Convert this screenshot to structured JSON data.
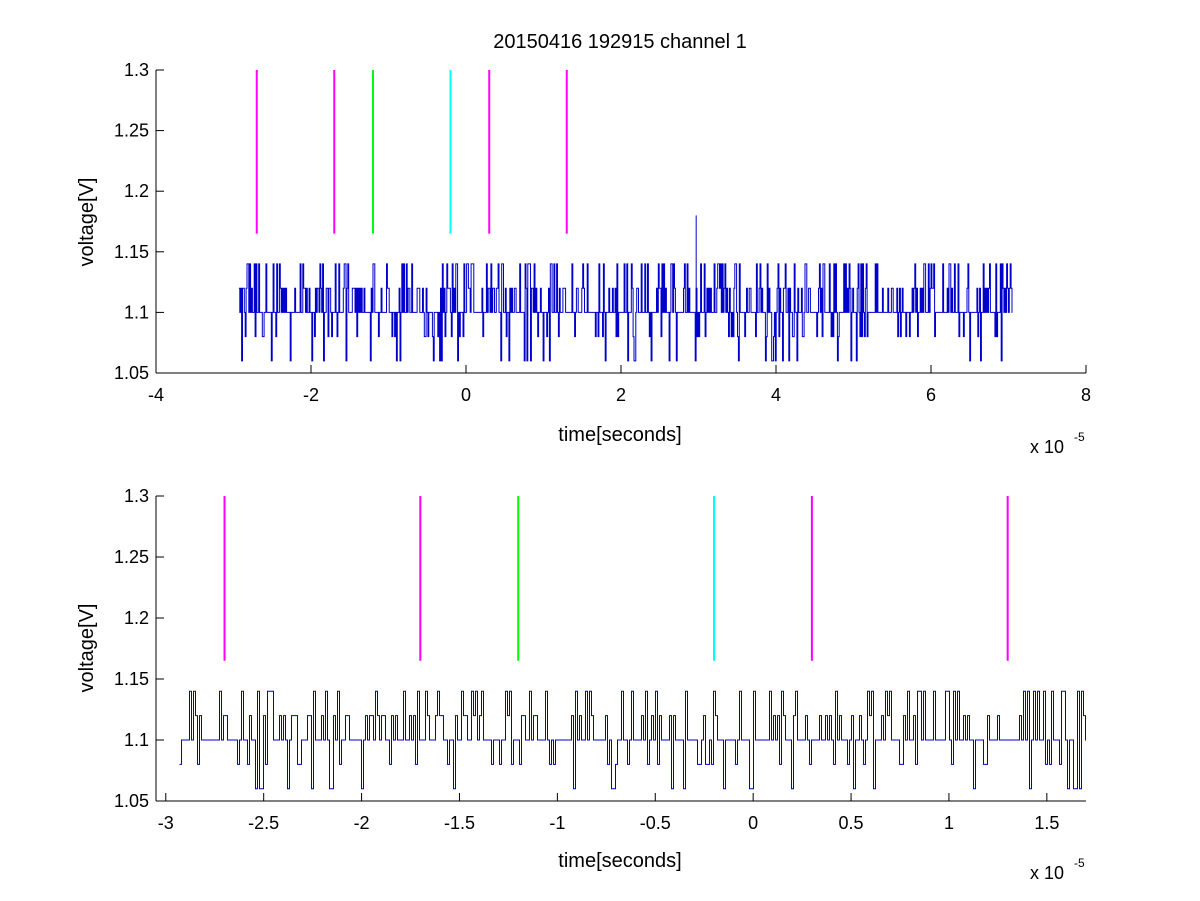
{
  "chart_data": [
    {
      "type": "line",
      "title": "20150416 192915 channel 1",
      "xlabel": "time[seconds]",
      "ylabel": "voltage[V]",
      "x_multiplier_base": "x 10",
      "x_multiplier_exp": "-5",
      "x_scale": 1e-05,
      "xlim": [
        -4,
        8
      ],
      "ylim": [
        1.05,
        1.3
      ],
      "xticks": [
        -4,
        -2,
        0,
        2,
        4,
        6,
        8
      ],
      "xtick_labels": [
        "-4",
        "-2",
        "0",
        "2",
        "4",
        "6",
        "8"
      ],
      "yticks": [
        1.05,
        1.1,
        1.15,
        1.2,
        1.25,
        1.3
      ],
      "ytick_labels": [
        "1.05",
        "1.1",
        "1.15",
        "1.2",
        "1.25",
        "1.3"
      ],
      "grid": false,
      "series": [
        {
          "color": "#0000cc",
          "style": "noisy-step",
          "x_range": [
            -2.93,
            7.05
          ],
          "baseline": 1.1,
          "levels": [
            1.06,
            1.08,
            1.1,
            1.12,
            1.14
          ],
          "spike": {
            "x": 2.97,
            "y": 1.18
          }
        }
      ],
      "markers": [
        {
          "x": -2.7,
          "y_range": [
            1.165,
            1.3
          ],
          "color": "#ff00ff"
        },
        {
          "x": -1.7,
          "y_range": [
            1.165,
            1.3
          ],
          "color": "#ff00ff"
        },
        {
          "x": -1.2,
          "y_range": [
            1.165,
            1.3
          ],
          "color": "#00ff00"
        },
        {
          "x": -0.2,
          "y_range": [
            1.165,
            1.3
          ],
          "color": "#00ffff"
        },
        {
          "x": 0.3,
          "y_range": [
            1.165,
            1.3
          ],
          "color": "#ff00ff"
        },
        {
          "x": 1.3,
          "y_range": [
            1.165,
            1.3
          ],
          "color": "#ff00ff"
        }
      ]
    },
    {
      "type": "line",
      "title": "",
      "xlabel": "time[seconds]",
      "ylabel": "voltage[V]",
      "x_multiplier_base": "x 10",
      "x_multiplier_exp": "-5",
      "x_scale": 1e-05,
      "xlim": [
        -3.05,
        1.7
      ],
      "ylim": [
        1.05,
        1.3
      ],
      "xticks": [
        -3,
        -2.5,
        -2,
        -1.5,
        -1,
        -0.5,
        0,
        0.5,
        1,
        1.5
      ],
      "xtick_labels": [
        "-3",
        "-2.5",
        "-2",
        "-1.5",
        "-1",
        "-0.5",
        "0",
        "0.5",
        "1",
        "1.5"
      ],
      "yticks": [
        1.05,
        1.1,
        1.15,
        1.2,
        1.25,
        1.3
      ],
      "ytick_labels": [
        "1.05",
        "1.1",
        "1.15",
        "1.2",
        "1.25",
        "1.3"
      ],
      "grid": false,
      "series": [
        {
          "color": "#0000cc",
          "style": "noisy-step",
          "x_range": [
            -2.93,
            1.7
          ],
          "baseline": 1.1,
          "levels": [
            1.06,
            1.08,
            1.1,
            1.12,
            1.14
          ]
        }
      ],
      "markers": [
        {
          "x": -2.7,
          "y_range": [
            1.165,
            1.3
          ],
          "color": "#ff00ff"
        },
        {
          "x": -1.7,
          "y_range": [
            1.165,
            1.3
          ],
          "color": "#ff00ff"
        },
        {
          "x": -1.2,
          "y_range": [
            1.165,
            1.3
          ],
          "color": "#00ff00"
        },
        {
          "x": -0.2,
          "y_range": [
            1.165,
            1.3
          ],
          "color": "#00ffff"
        },
        {
          "x": 0.3,
          "y_range": [
            1.165,
            1.3
          ],
          "color": "#ff00ff"
        },
        {
          "x": 1.3,
          "y_range": [
            1.165,
            1.3
          ],
          "color": "#ff00ff"
        }
      ]
    }
  ]
}
